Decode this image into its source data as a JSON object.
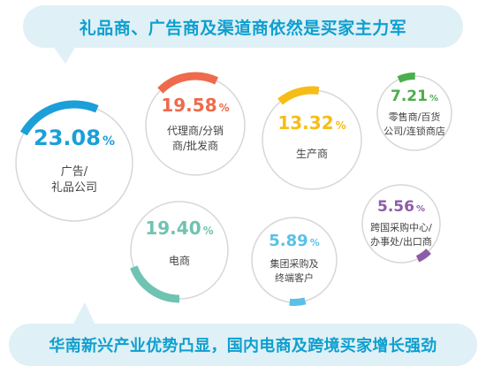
{
  "header": {
    "title": "礼品商、广告商及渠道商依然是买家主力军"
  },
  "footer": {
    "title": "华南新兴产业优势凸显，国内电商及跨境买家增长强劲"
  },
  "chart_data": {
    "type": "pie",
    "title": "礼品商、广告商及渠道商依然是买家主力军",
    "unit": "%",
    "categories": [
      "广告/礼品公司",
      "代理商/分销商/批发商",
      "生产商",
      "零售商/百货公司/连锁商店",
      "电商",
      "集团采购及终端客户",
      "跨国采购中心/办事处/出口商"
    ],
    "values": [
      23.08,
      19.58,
      13.32,
      7.21,
      19.4,
      5.89,
      5.56
    ],
    "value_labels": [
      "23.08",
      "19.58",
      "13.32",
      "7.21",
      "19.40",
      "5.89",
      "5.56"
    ],
    "label_lines": [
      [
        "广告/",
        "礼品公司"
      ],
      [
        "代理商/分销",
        "商/批发商"
      ],
      [
        "生产商"
      ],
      [
        "零售商/百货",
        "公司/连锁商店"
      ],
      [
        "电商"
      ],
      [
        "集团采购及",
        "终端客户"
      ],
      [
        "跨国采购中心/",
        "办事处/出口商"
      ]
    ],
    "colors": [
      "#1a9fd9",
      "#ef6a4c",
      "#f6bd16",
      "#4cae4c",
      "#6fc3b2",
      "#5bc0e6",
      "#8e5ca6"
    ],
    "track_color": "#d7d7d7"
  }
}
